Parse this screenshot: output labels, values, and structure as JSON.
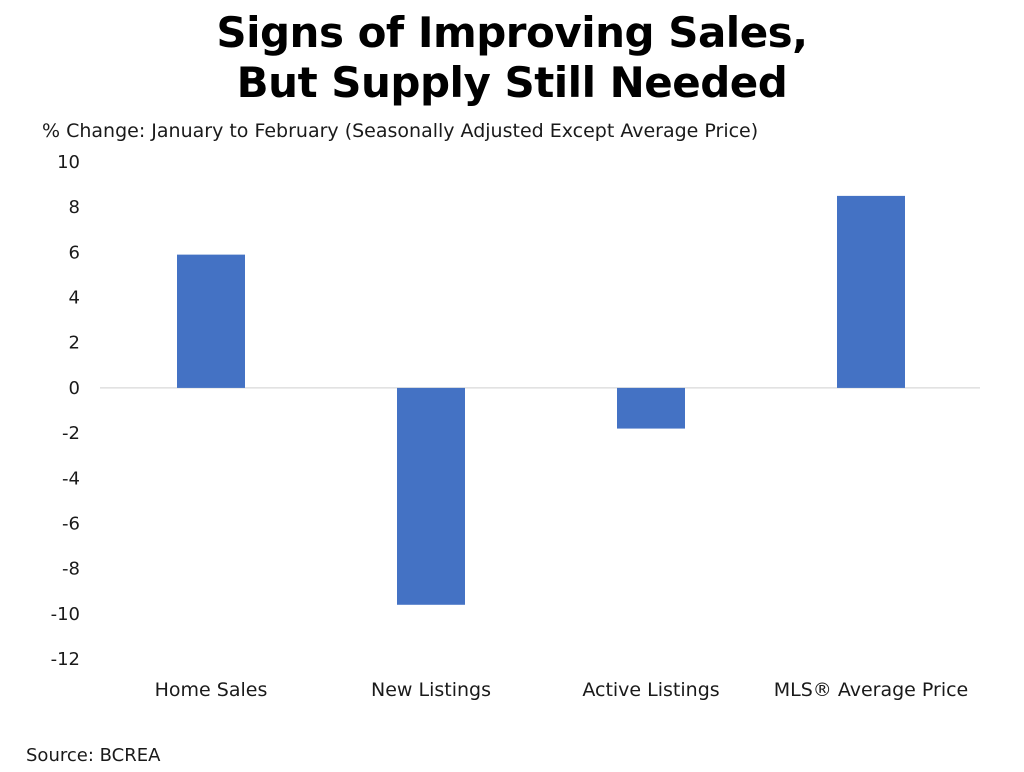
{
  "title_line1": "Signs of Improving Sales,",
  "title_line2": "But Supply Still Needed",
  "subtitle": "% Change: January to February (Seasonally Adjusted Except Average Price)",
  "source": "Source: BCREA",
  "colors": {
    "bar": "#4472C4",
    "zero_line": "#d9d9d9"
  },
  "chart_data": {
    "type": "bar",
    "title": "Signs of Improving Sales, But Supply Still Needed",
    "ylabel": "% Change: January to February (Seasonally Adjusted Except Average Price)",
    "xlabel": "",
    "categories": [
      "Home Sales",
      "New Listings",
      "Active Listings",
      "MLS® Average Price"
    ],
    "values": [
      5.9,
      -9.6,
      -1.8,
      8.5
    ],
    "ylim": [
      -12,
      10
    ],
    "yticks": [
      10,
      8,
      6,
      4,
      2,
      0,
      -2,
      -4,
      -6,
      -8,
      -10,
      -12
    ],
    "grid": false,
    "legend": "none"
  }
}
